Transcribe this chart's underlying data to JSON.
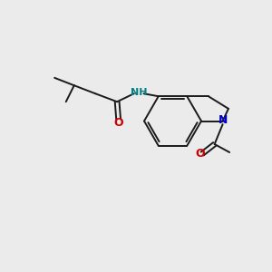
{
  "background_color": "#ebebeb",
  "bond_color": "#1a1a1a",
  "atom_colors": {
    "N": "#0000cc",
    "O": "#cc0000",
    "NH": "#008080"
  },
  "figsize": [
    3.0,
    3.0
  ],
  "dpi": 100,
  "bond_lw": 1.4
}
